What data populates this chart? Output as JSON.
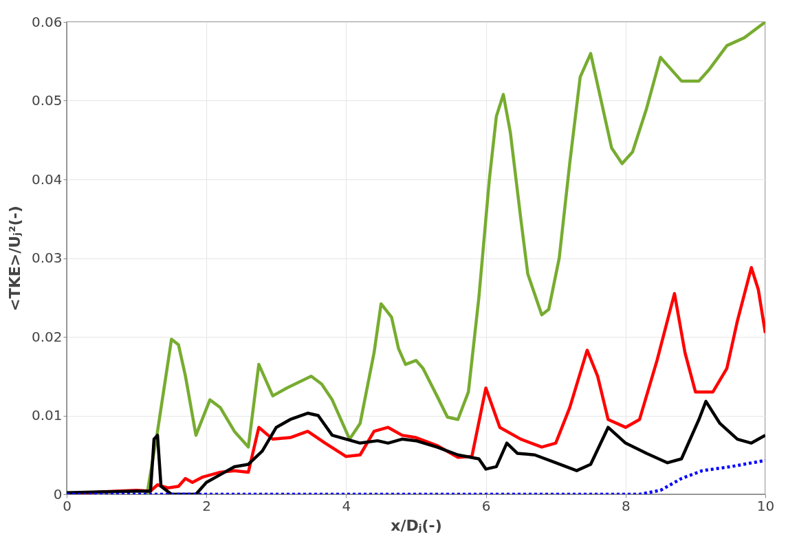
{
  "chart_data": {
    "type": "line",
    "xlabel": "x/Dⱼ(-)",
    "ylabel": "<TKE>/Uⱼ²(-)",
    "xlim": [
      0,
      10
    ],
    "xticks": [
      0,
      2,
      4,
      6,
      8,
      10
    ],
    "ylim": [
      0,
      0.06
    ],
    "yticks": [
      0,
      0.01,
      0.02,
      0.03,
      0.04,
      0.05,
      0.06
    ],
    "grid": true,
    "marker": "none",
    "series": [
      {
        "color": "#77ac30",
        "line_style": "solid",
        "x": [
          1.15,
          1.3,
          1.5,
          1.6,
          1.7,
          1.85,
          2.05,
          2.2,
          2.4,
          2.6,
          2.75,
          2.95,
          3.15,
          3.5,
          3.65,
          3.8,
          4.05,
          4.2,
          4.4,
          4.5,
          4.65,
          4.75,
          4.85,
          5.0,
          5.1,
          5.3,
          5.45,
          5.6,
          5.75,
          5.9,
          6.05,
          6.15,
          6.25,
          6.35,
          6.5,
          6.6,
          6.8,
          6.9,
          7.05,
          7.2,
          7.35,
          7.5,
          7.6,
          7.8,
          7.95,
          8.1,
          8.3,
          8.5,
          8.6,
          8.8,
          9.05,
          9.2,
          9.45,
          9.7,
          10.0
        ],
        "values": [
          0,
          0.008,
          0.0197,
          0.019,
          0.015,
          0.0075,
          0.012,
          0.011,
          0.008,
          0.006,
          0.0165,
          0.0125,
          0.0135,
          0.015,
          0.014,
          0.012,
          0.007,
          0.009,
          0.018,
          0.0242,
          0.0225,
          0.0185,
          0.0165,
          0.017,
          0.016,
          0.0125,
          0.0098,
          0.0095,
          0.013,
          0.025,
          0.04,
          0.048,
          0.0508,
          0.046,
          0.035,
          0.028,
          0.0228,
          0.0235,
          0.03,
          0.042,
          0.053,
          0.056,
          0.052,
          0.044,
          0.042,
          0.0435,
          0.049,
          0.0555,
          0.0545,
          0.0525,
          0.0525,
          0.054,
          0.057,
          0.058,
          0.06
        ]
      },
      {
        "color": "#ff0000",
        "line_style": "solid",
        "x": [
          0,
          0.5,
          1.0,
          1.2,
          1.3,
          1.45,
          1.6,
          1.7,
          1.8,
          1.95,
          2.2,
          2.4,
          2.6,
          2.75,
          2.95,
          3.2,
          3.45,
          3.7,
          4.0,
          4.2,
          4.4,
          4.6,
          4.8,
          5.0,
          5.3,
          5.6,
          5.8,
          6.0,
          6.2,
          6.5,
          6.8,
          7.0,
          7.2,
          7.45,
          7.6,
          7.75,
          8.0,
          8.2,
          8.45,
          8.7,
          8.85,
          9.0,
          9.25,
          9.45,
          9.6,
          9.8,
          9.9,
          10.0
        ],
        "values": [
          0,
          0.0003,
          0.0005,
          0.0004,
          0.0012,
          0.0008,
          0.001,
          0.002,
          0.0015,
          0.0022,
          0.0028,
          0.003,
          0.0028,
          0.0085,
          0.007,
          0.0072,
          0.008,
          0.0065,
          0.0048,
          0.005,
          0.008,
          0.0085,
          0.0075,
          0.0072,
          0.0062,
          0.0047,
          0.0048,
          0.0135,
          0.0085,
          0.007,
          0.006,
          0.0065,
          0.011,
          0.0183,
          0.015,
          0.0095,
          0.0085,
          0.0095,
          0.017,
          0.0255,
          0.018,
          0.013,
          0.013,
          0.016,
          0.022,
          0.0288,
          0.026,
          0.0205
        ]
      },
      {
        "color": "#000000",
        "line_style": "solid",
        "x": [
          0,
          0.5,
          1.0,
          1.2,
          1.25,
          1.3,
          1.35,
          1.5,
          1.85,
          2.0,
          2.2,
          2.4,
          2.6,
          2.8,
          3.0,
          3.2,
          3.45,
          3.6,
          3.8,
          4.0,
          4.2,
          4.45,
          4.6,
          4.8,
          5.0,
          5.3,
          5.6,
          5.9,
          6.0,
          6.15,
          6.3,
          6.45,
          6.7,
          7.0,
          7.3,
          7.5,
          7.75,
          8.0,
          8.3,
          8.6,
          8.8,
          9.05,
          9.15,
          9.35,
          9.6,
          9.8,
          10.0
        ],
        "values": [
          0.0002,
          0.0003,
          0.0004,
          0.0004,
          0.007,
          0.0075,
          0.001,
          0,
          0,
          0.0015,
          0.0025,
          0.0035,
          0.0038,
          0.0055,
          0.0085,
          0.0095,
          0.0103,
          0.01,
          0.0075,
          0.007,
          0.0065,
          0.0068,
          0.0065,
          0.007,
          0.0068,
          0.006,
          0.005,
          0.0045,
          0.0032,
          0.0035,
          0.0065,
          0.0052,
          0.005,
          0.004,
          0.003,
          0.0038,
          0.0085,
          0.0065,
          0.0052,
          0.004,
          0.0045,
          0.0095,
          0.0118,
          0.009,
          0.007,
          0.0065,
          0.0075
        ]
      },
      {
        "color": "#0000ff",
        "line_style": "dotted",
        "x": [
          0,
          8.2,
          8.5,
          8.8,
          9.1,
          9.5,
          10.0
        ],
        "values": [
          0,
          0,
          0.0005,
          0.002,
          0.003,
          0.0035,
          0.0043
        ]
      }
    ]
  }
}
